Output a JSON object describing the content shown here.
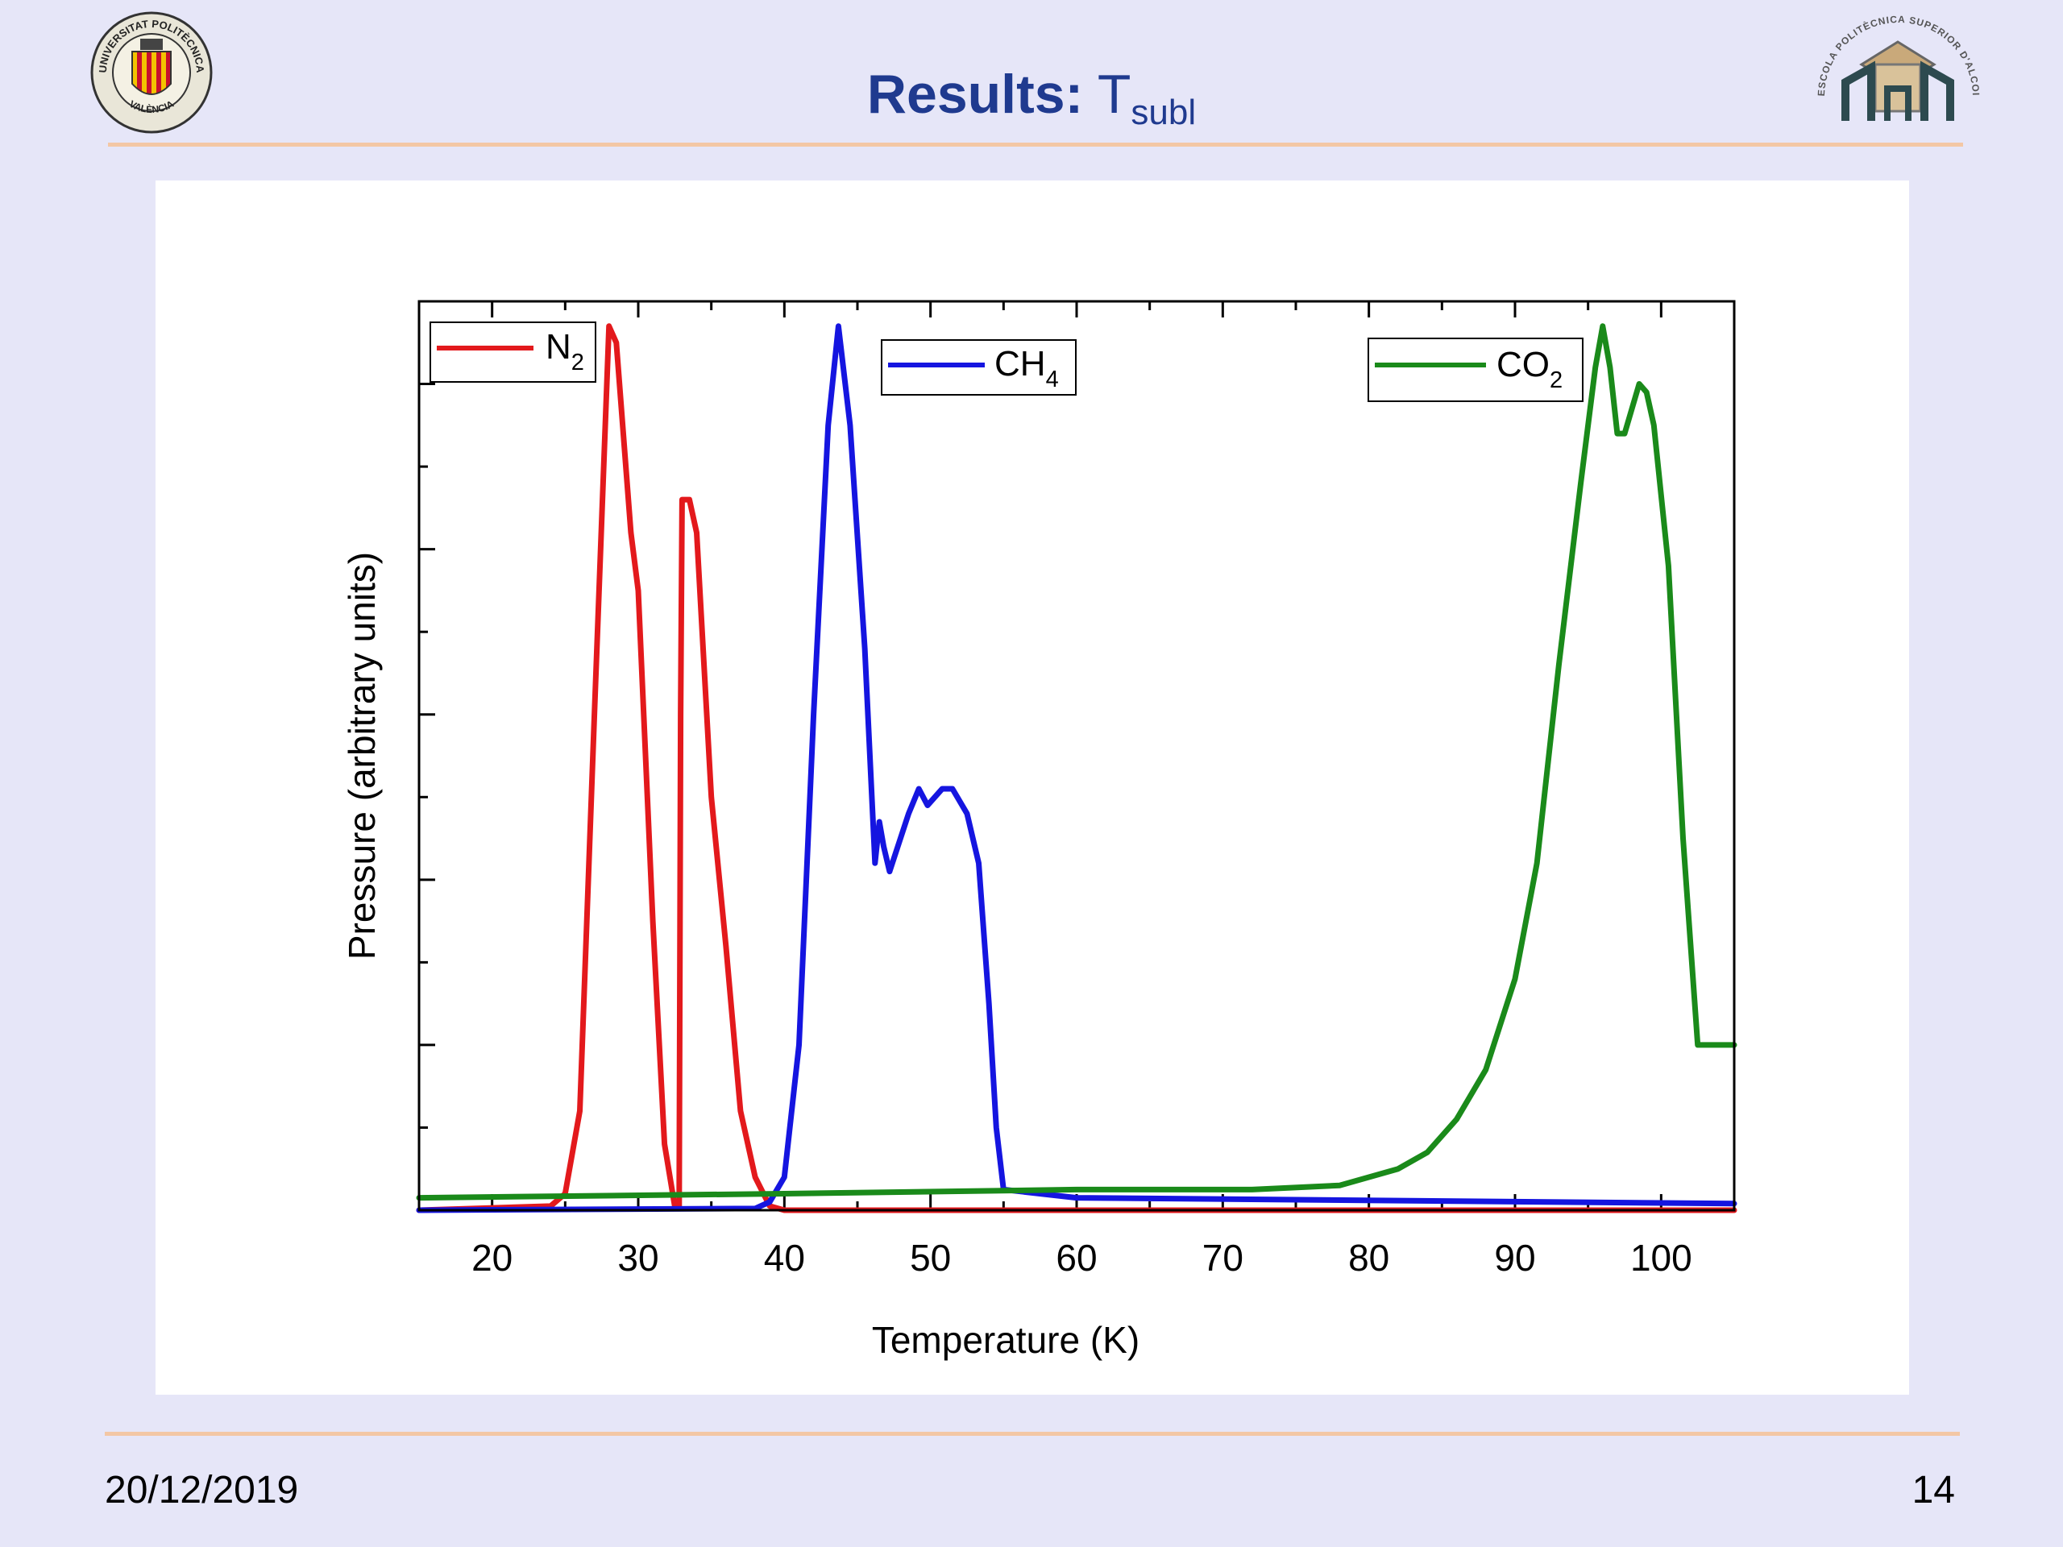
{
  "slide": {
    "title_bold": "Results:",
    "title_symbol": "T",
    "title_subscript": "subl",
    "date": "20/12/2019",
    "page_number": "14",
    "colors": {
      "title": "#1f3a8f",
      "background": "#e6e6f8",
      "rule": "#f3c7a5"
    }
  },
  "logos": {
    "left": {
      "icon": "university-seal-icon",
      "text_top": "UNIVERSITAT POLITÈCNICA",
      "text_bottom": "VALÈNCIA"
    },
    "right": {
      "icon": "school-emblem-icon",
      "text": "ESCOLA POLITÈCNICA SUPERIOR D'ALCOI"
    }
  },
  "chart_data": {
    "type": "line",
    "xlabel": "Temperature (K)",
    "ylabel": "Pressure (arbitrary units)",
    "xlim": [
      15,
      105
    ],
    "ylim": [
      0,
      1.1
    ],
    "x_ticks": [
      "20",
      "30",
      "40",
      "50",
      "60",
      "70",
      "80",
      "90",
      "100"
    ],
    "y_tick_labels": false,
    "grid": false,
    "series": [
      {
        "name": "N",
        "name_sub": "2",
        "color": "#e3191c",
        "x": [
          15,
          24,
          25,
          26,
          27,
          28,
          28.5,
          29.5,
          30,
          31,
          31.8,
          32.5,
          32.8,
          32.9,
          33,
          33.5,
          34,
          35,
          36,
          37,
          38,
          39,
          40,
          105
        ],
        "y": [
          0.0,
          0.005,
          0.02,
          0.12,
          0.6,
          1.07,
          1.05,
          0.82,
          0.75,
          0.35,
          0.08,
          0.005,
          0.005,
          0.6,
          0.86,
          0.86,
          0.82,
          0.5,
          0.32,
          0.12,
          0.04,
          0.005,
          0.0,
          0.0
        ]
      },
      {
        "name": "CH",
        "name_sub": "4",
        "color": "#1515e0",
        "x": [
          15,
          38,
          39,
          40,
          41,
          42,
          43,
          43.7,
          44.5,
          45.5,
          46.2,
          46.5,
          46.8,
          47.2,
          48.5,
          49.2,
          49.8,
          50.8,
          51.5,
          52.5,
          53.3,
          54,
          54.5,
          55,
          60,
          105
        ],
        "y": [
          0.0,
          0.002,
          0.01,
          0.04,
          0.2,
          0.6,
          0.95,
          1.07,
          0.95,
          0.68,
          0.42,
          0.47,
          0.44,
          0.41,
          0.48,
          0.51,
          0.49,
          0.51,
          0.51,
          0.48,
          0.42,
          0.25,
          0.1,
          0.025,
          0.015,
          0.008
        ]
      },
      {
        "name": "CO",
        "name_sub": "2",
        "color": "#1a8a1a",
        "x": [
          15,
          40,
          60,
          72,
          78,
          82,
          84,
          86,
          88,
          90,
          91.5,
          93,
          94.5,
          95.5,
          96,
          96.5,
          97,
          97.5,
          98.5,
          99,
          99.5,
          100.5,
          101.5,
          102.5,
          103,
          104,
          105
        ],
        "y": [
          0.015,
          0.02,
          0.025,
          0.025,
          0.03,
          0.05,
          0.07,
          0.11,
          0.17,
          0.28,
          0.42,
          0.66,
          0.88,
          1.02,
          1.07,
          1.02,
          0.94,
          0.94,
          1.0,
          0.99,
          0.95,
          0.78,
          0.45,
          0.2,
          0.2,
          0.2,
          0.2
        ]
      }
    ],
    "legend_placement": "separate boxes above each series peak"
  }
}
